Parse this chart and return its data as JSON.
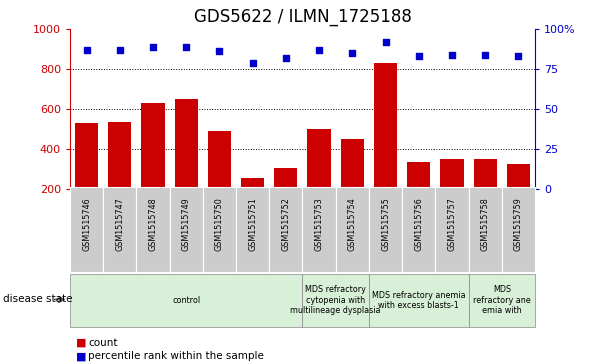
{
  "title": "GDS5622 / ILMN_1725188",
  "samples": [
    "GSM1515746",
    "GSM1515747",
    "GSM1515748",
    "GSM1515749",
    "GSM1515750",
    "GSM1515751",
    "GSM1515752",
    "GSM1515753",
    "GSM1515754",
    "GSM1515755",
    "GSM1515756",
    "GSM1515757",
    "GSM1515758",
    "GSM1515759"
  ],
  "counts": [
    530,
    535,
    630,
    650,
    490,
    255,
    305,
    500,
    450,
    830,
    335,
    350,
    348,
    325
  ],
  "percentiles": [
    87,
    87,
    89,
    89,
    86,
    79,
    82,
    87,
    85,
    92,
    83,
    84,
    84,
    83
  ],
  "group_boundaries": [
    {
      "label": "control",
      "start": 0,
      "end": 7
    },
    {
      "label": "MDS refractory\ncytopenia with\nmultilineage dysplasia",
      "start": 7,
      "end": 9
    },
    {
      "label": "MDS refractory anemia\nwith excess blasts-1",
      "start": 9,
      "end": 12
    },
    {
      "label": "MDS\nrefractory ane\nemia with",
      "start": 12,
      "end": 14
    }
  ],
  "ylim_left": [
    200,
    1000
  ],
  "ylim_right": [
    0,
    100
  ],
  "yticks_left": [
    200,
    400,
    600,
    800,
    1000
  ],
  "yticks_right": [
    0,
    25,
    50,
    75,
    100
  ],
  "bar_color": "#cc0000",
  "dot_color": "#0000cc",
  "tickbox_color": "#cccccc",
  "group_color": "#d8f0d8",
  "title_fontsize": 12
}
